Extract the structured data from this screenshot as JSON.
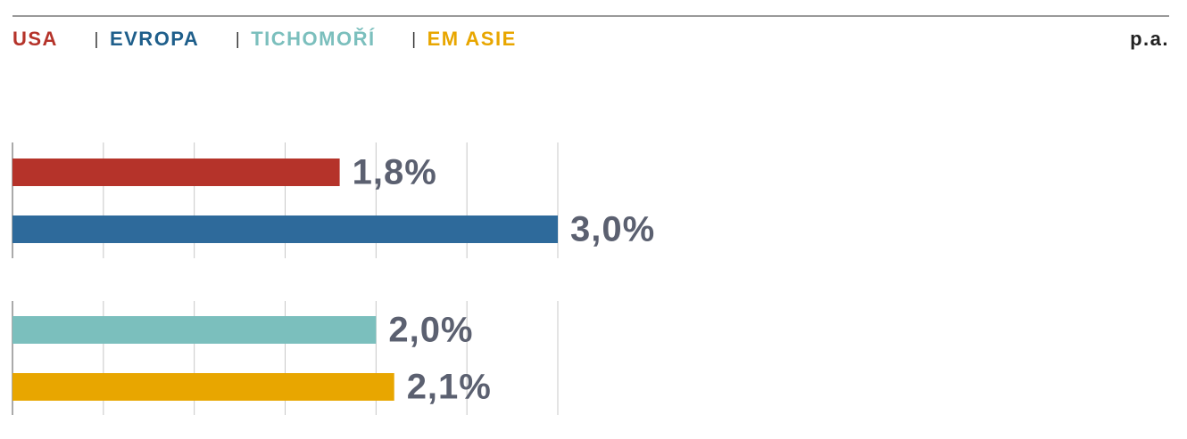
{
  "chart_data": {
    "type": "bar",
    "orientation": "horizontal",
    "unit_note": "p.a.",
    "series": [
      {
        "name": "USA",
        "color": "#b5332a",
        "values": [
          1.8
        ],
        "value_labels": [
          "1,8%"
        ]
      },
      {
        "name": "EVROPA",
        "color": "#2e6a9b",
        "values": [
          3.0
        ],
        "value_labels": [
          "3,0%"
        ]
      },
      {
        "name": "TICHOMOŘÍ",
        "color": "#7bbfbd",
        "values": [
          2.0
        ],
        "value_labels": [
          "2,0%"
        ]
      },
      {
        "name": "EM ASIE",
        "color": "#e8a600",
        "values": [
          2.1
        ],
        "value_labels": [
          "2,1%"
        ]
      }
    ],
    "xlim": [
      0,
      3
    ],
    "xticks": [
      0,
      0.5,
      1,
      1.5,
      2,
      2.5,
      3
    ],
    "grid": true
  }
}
